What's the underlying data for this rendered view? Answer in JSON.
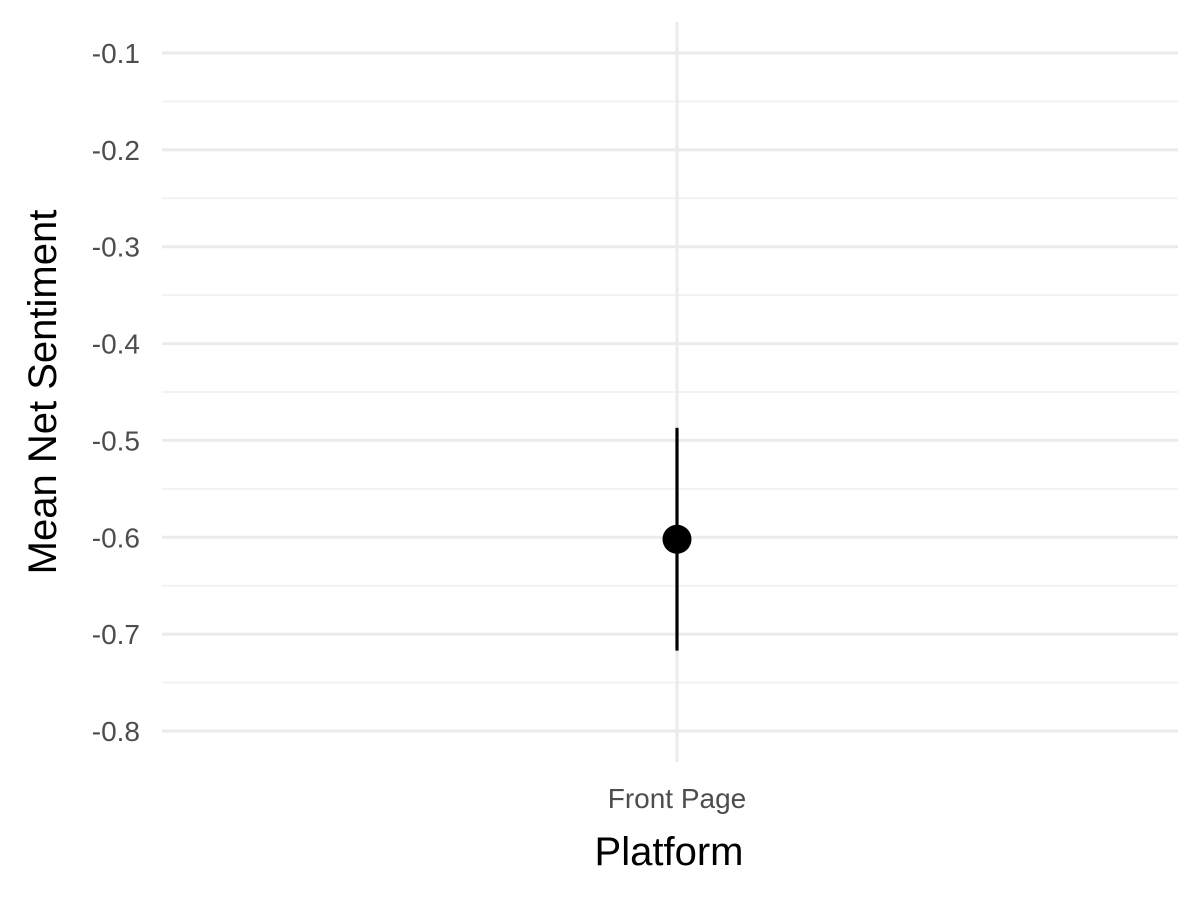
{
  "chart_data": {
    "type": "scatter",
    "title": "",
    "xlabel": "Platform",
    "ylabel": "Mean Net Sentiment",
    "categories": [
      "Front Page"
    ],
    "points": [
      {
        "category": "Front Page",
        "mean": -0.602,
        "lower": -0.717,
        "upper": -0.487
      }
    ],
    "ylim": [
      -0.832,
      -0.068
    ],
    "yticks": [
      -0.1,
      -0.2,
      -0.3,
      -0.4,
      -0.5,
      -0.6,
      -0.7,
      -0.8
    ],
    "ytick_labels": [
      "-0.1",
      "-0.2",
      "-0.3",
      "-0.4",
      "-0.5",
      "-0.6",
      "-0.7",
      "-0.8"
    ],
    "error_bars": true,
    "grid": true,
    "legend": "none",
    "colors": {
      "point": "#000000",
      "grid_major": "#ebebeb",
      "grid_minor": "#f2f2f2",
      "tick_text": "#4d4d4d",
      "background": "#ffffff"
    }
  }
}
